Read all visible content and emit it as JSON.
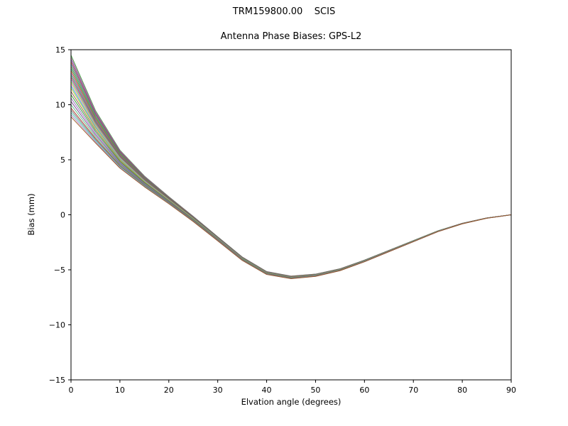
{
  "colors": {
    "background": "#ffffff",
    "axis": "#000000",
    "text": "#000000"
  },
  "chart_data": {
    "type": "line",
    "suptitle": "TRM159800.00    SCIS",
    "title": "Antenna Phase Biases: GPS-L2",
    "xlabel": "Elvation angle (degrees)",
    "ylabel": "Bias (mm)",
    "xlim": [
      0,
      90
    ],
    "ylim": [
      -15,
      15
    ],
    "xticks": [
      0,
      10,
      20,
      30,
      40,
      50,
      60,
      70,
      80,
      90
    ],
    "yticks": [
      -15,
      -10,
      -5,
      0,
      5,
      10,
      15
    ],
    "grid": false,
    "legend": null,
    "x": [
      0,
      5,
      10,
      15,
      20,
      25,
      30,
      35,
      40,
      45,
      50,
      55,
      60,
      65,
      70,
      75,
      80,
      85,
      90
    ],
    "base": [
      11.5,
      7.9,
      5.0,
      3.0,
      1.3,
      -0.4,
      -2.2,
      -4.0,
      -5.3,
      -5.7,
      -5.5,
      -5.0,
      -4.2,
      -3.3,
      -2.4,
      -1.5,
      -0.8,
      -0.3,
      0.0
    ],
    "offset_decay_deg": 7,
    "residual_fraction": 0.08,
    "series": [
      {
        "color": "#3b9e3b",
        "offset": 3.0
      },
      {
        "color": "#b05fa0",
        "offset": 2.8
      },
      {
        "color": "#6a51a3",
        "offset": 2.6
      },
      {
        "color": "#c0392b",
        "offset": 2.4
      },
      {
        "color": "#2e86c1",
        "offset": 2.2
      },
      {
        "color": "#7f8c1e",
        "offset": 2.0
      },
      {
        "color": "#16a085",
        "offset": 1.8
      },
      {
        "color": "#d35400",
        "offset": 1.6
      },
      {
        "color": "#8e44ad",
        "offset": 1.4
      },
      {
        "color": "#27ae60",
        "offset": 1.2
      },
      {
        "color": "#c2185b",
        "offset": 1.0
      },
      {
        "color": "#5d8aa8",
        "offset": 0.8
      },
      {
        "color": "#9acd32",
        "offset": 0.6
      },
      {
        "color": "#e377c2",
        "offset": 0.4
      },
      {
        "color": "#17becf",
        "offset": 0.2
      },
      {
        "color": "#bcbd22",
        "offset": 0.0
      },
      {
        "color": "#8c564b",
        "offset": -0.3
      },
      {
        "color": "#2ca02c",
        "offset": -0.6
      },
      {
        "color": "#9467bd",
        "offset": -0.9
      },
      {
        "color": "#76448a",
        "offset": -1.2
      },
      {
        "color": "#52be80",
        "offset": -1.5
      },
      {
        "color": "#a93226",
        "offset": -1.8
      },
      {
        "color": "#707b7c",
        "offset": -2.0
      },
      {
        "color": "#48c9b0",
        "offset": -2.2
      },
      {
        "color": "#af7ac5",
        "offset": -2.4
      },
      {
        "color": "#935116",
        "offset": -2.6
      }
    ]
  }
}
